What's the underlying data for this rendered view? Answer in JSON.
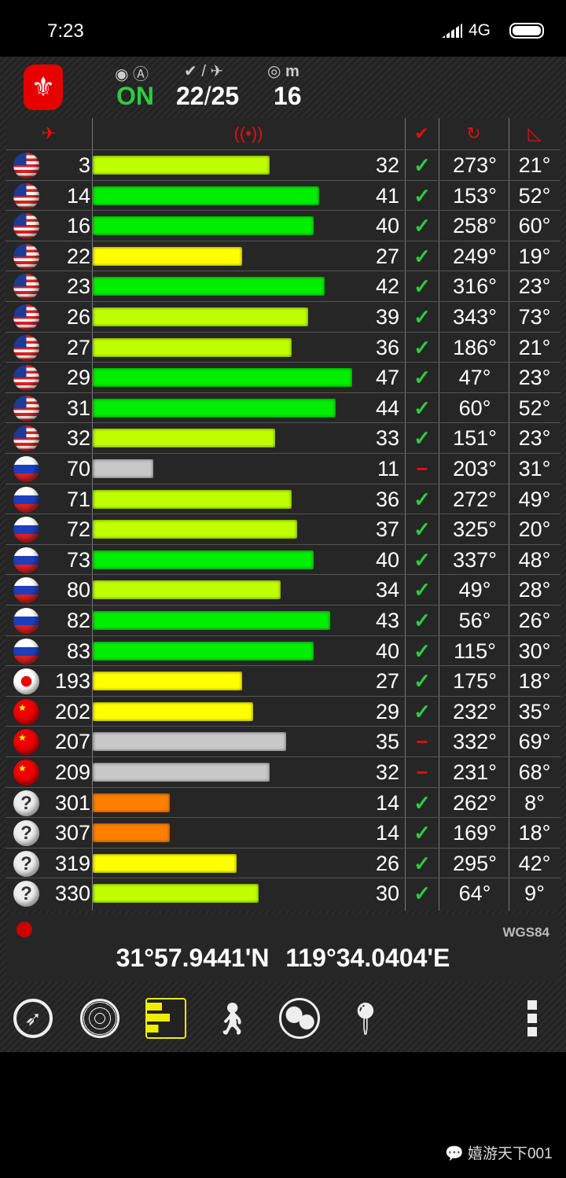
{
  "status_bar": {
    "time": "7:23",
    "network": "4G"
  },
  "header": {
    "fix_status": "ON",
    "fix_status_color": "#2ecc40",
    "sats_used": "22",
    "sats_separator": "/",
    "sats_total": "25",
    "accuracy": "16",
    "accuracy_unit": "m"
  },
  "table": {
    "headers": [
      "satellite-icon",
      "signal-icon",
      "used-check-icon",
      "azimuth-icon",
      "elevation-icon"
    ],
    "rows": [
      {
        "flag": "us",
        "prn": "3",
        "snr": 32,
        "used": true,
        "az": "273°",
        "el": "21°"
      },
      {
        "flag": "us",
        "prn": "14",
        "snr": 41,
        "used": true,
        "az": "153°",
        "el": "52°"
      },
      {
        "flag": "us",
        "prn": "16",
        "snr": 40,
        "used": true,
        "az": "258°",
        "el": "60°"
      },
      {
        "flag": "us",
        "prn": "22",
        "snr": 27,
        "used": true,
        "az": "249°",
        "el": "19°"
      },
      {
        "flag": "us",
        "prn": "23",
        "snr": 42,
        "used": true,
        "az": "316°",
        "el": "23°"
      },
      {
        "flag": "us",
        "prn": "26",
        "snr": 39,
        "used": true,
        "az": "343°",
        "el": "73°"
      },
      {
        "flag": "us",
        "prn": "27",
        "snr": 36,
        "used": true,
        "az": "186°",
        "el": "21°"
      },
      {
        "flag": "us",
        "prn": "29",
        "snr": 47,
        "used": true,
        "az": "47°",
        "el": "23°"
      },
      {
        "flag": "us",
        "prn": "31",
        "snr": 44,
        "used": true,
        "az": "60°",
        "el": "52°"
      },
      {
        "flag": "us",
        "prn": "32",
        "snr": 33,
        "used": true,
        "az": "151°",
        "el": "23°"
      },
      {
        "flag": "ru",
        "prn": "70",
        "snr": 11,
        "used": false,
        "az": "203°",
        "el": "31°"
      },
      {
        "flag": "ru",
        "prn": "71",
        "snr": 36,
        "used": true,
        "az": "272°",
        "el": "49°"
      },
      {
        "flag": "ru",
        "prn": "72",
        "snr": 37,
        "used": true,
        "az": "325°",
        "el": "20°"
      },
      {
        "flag": "ru",
        "prn": "73",
        "snr": 40,
        "used": true,
        "az": "337°",
        "el": "48°"
      },
      {
        "flag": "ru",
        "prn": "80",
        "snr": 34,
        "used": true,
        "az": "49°",
        "el": "28°"
      },
      {
        "flag": "ru",
        "prn": "82",
        "snr": 43,
        "used": true,
        "az": "56°",
        "el": "26°"
      },
      {
        "flag": "ru",
        "prn": "83",
        "snr": 40,
        "used": true,
        "az": "115°",
        "el": "30°"
      },
      {
        "flag": "jp",
        "prn": "193",
        "snr": 27,
        "used": true,
        "az": "175°",
        "el": "18°"
      },
      {
        "flag": "cn",
        "prn": "202",
        "snr": 29,
        "used": true,
        "az": "232°",
        "el": "35°"
      },
      {
        "flag": "cn",
        "prn": "207",
        "snr": 35,
        "used": false,
        "az": "332°",
        "el": "69°"
      },
      {
        "flag": "cn",
        "prn": "209",
        "snr": 32,
        "used": false,
        "az": "231°",
        "el": "68°"
      },
      {
        "flag": "unknown",
        "prn": "301",
        "snr": 14,
        "used": true,
        "az": "262°",
        "el": "8°"
      },
      {
        "flag": "unknown",
        "prn": "307",
        "snr": 14,
        "used": true,
        "az": "169°",
        "el": "18°"
      },
      {
        "flag": "unknown",
        "prn": "319",
        "snr": 26,
        "used": true,
        "az": "295°",
        "el": "42°"
      },
      {
        "flag": "unknown",
        "prn": "330",
        "snr": 30,
        "used": true,
        "az": "64°",
        "el": "9°"
      }
    ]
  },
  "colors": {
    "unused": "#c8c8c8",
    "weak": "#ff8000",
    "fair": "#ffff00",
    "good": "#bfff00",
    "strong": "#00ee00",
    "header_icon": "#e01010"
  },
  "coordinates": {
    "datum": "WGS84",
    "lat": "31°57.9441'N",
    "lon": "119°34.0404'E"
  },
  "nav": {
    "items": [
      "compass",
      "skyview",
      "signal-bars",
      "walk",
      "globe",
      "map-pin",
      "more"
    ],
    "active": "signal-bars"
  },
  "watermark": "嬉游天下001"
}
